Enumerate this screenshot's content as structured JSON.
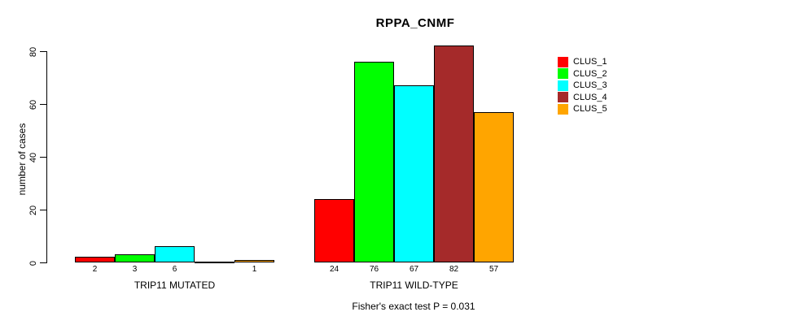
{
  "title": "RPPA_CNMF",
  "chart_data": {
    "type": "bar",
    "title": "RPPA_CNMF",
    "xlabel": "",
    "ylabel": "number of cases",
    "ylim": [
      0,
      80
    ],
    "yticks": [
      0,
      20,
      40,
      60,
      80
    ],
    "grid": false,
    "legend_position": "right",
    "groups": [
      "TRIP11 MUTATED",
      "TRIP11 WILD-TYPE"
    ],
    "series": [
      {
        "name": "CLUS_1",
        "color": "#FF0000",
        "values": [
          2,
          24
        ]
      },
      {
        "name": "CLUS_2",
        "color": "#00FF00",
        "values": [
          3,
          76
        ]
      },
      {
        "name": "CLUS_3",
        "color": "#00FFFF",
        "values": [
          6,
          67
        ]
      },
      {
        "name": "CLUS_4",
        "color": "#A52A2A",
        "values": [
          0,
          82
        ]
      },
      {
        "name": "CLUS_5",
        "color": "#FFA500",
        "values": [
          1,
          57
        ]
      }
    ],
    "bar_value_labels": [
      [
        "2",
        "3",
        "6",
        "",
        "1"
      ],
      [
        "24",
        "76",
        "67",
        "82",
        "57"
      ]
    ],
    "annotation": "Fisher's exact test P = 0.031"
  }
}
